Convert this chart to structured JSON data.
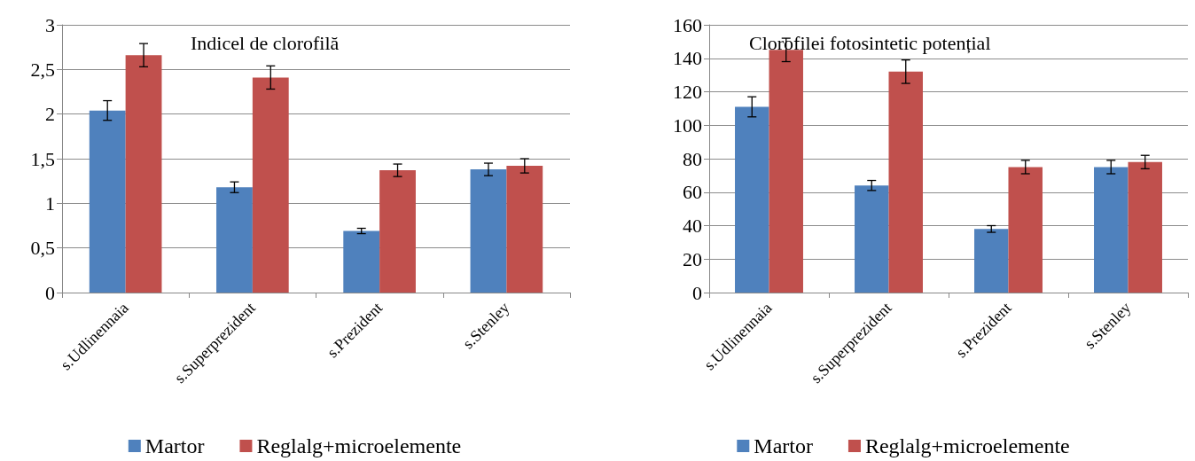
{
  "chart_data": [
    {
      "type": "bar",
      "title": "Indicel de clorofilă",
      "categories": [
        "s.Udlinennaia",
        "s.Superprezident",
        "s.Prezident",
        "s.Stenley"
      ],
      "series": [
        {
          "name": "Martor",
          "color": "#4f81bd",
          "values": [
            2.04,
            1.18,
            0.69,
            1.38
          ],
          "errors": [
            0.11,
            0.06,
            0.03,
            0.07
          ]
        },
        {
          "name": "Reglalg+microelemente",
          "color": "#c0504d",
          "values": [
            2.66,
            2.41,
            1.37,
            1.42
          ],
          "errors": [
            0.13,
            0.13,
            0.07,
            0.08
          ]
        }
      ],
      "ylim": [
        0,
        3
      ],
      "yticks": [
        0,
        {
          "value": 0.5,
          "label": "0,5"
        },
        1,
        {
          "value": 1.5,
          "label": "1,5"
        },
        2,
        {
          "value": 2.5,
          "label": "2,5"
        },
        3
      ],
      "grid": "y",
      "legend": "bottom"
    },
    {
      "type": "bar",
      "title": "Clorofilei fotosintetic potențial",
      "categories": [
        "s.Udlinennaia",
        "s.Superprezident",
        "s.Prezident",
        "s.Stenley"
      ],
      "series": [
        {
          "name": "Martor",
          "color": "#4f81bd",
          "values": [
            111,
            64,
            38,
            75
          ],
          "errors": [
            6,
            3,
            2,
            4
          ]
        },
        {
          "name": "Reglalg+microelemente",
          "color": "#c0504d",
          "values": [
            145,
            132,
            75,
            78
          ],
          "errors": [
            7,
            7,
            4,
            4
          ]
        }
      ],
      "ylim": [
        0,
        160
      ],
      "yticks": [
        0,
        20,
        40,
        60,
        80,
        100,
        120,
        140,
        160
      ],
      "grid": "y",
      "legend": "bottom"
    }
  ]
}
